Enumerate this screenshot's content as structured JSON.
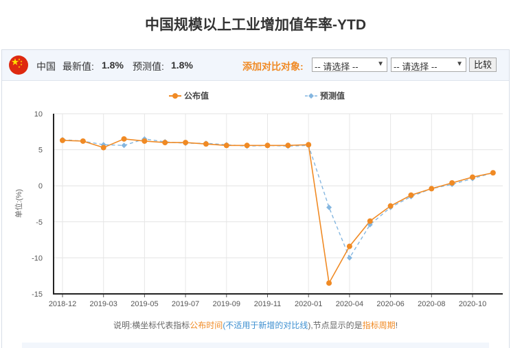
{
  "page": {
    "title": "中国规模以上工业增加值年率-YTD"
  },
  "toolbar": {
    "country": "中国",
    "latest_label": "最新值:",
    "latest_value": "1.8%",
    "forecast_label": "预测值:",
    "forecast_value": "1.8%",
    "compare_label": "添加对比对象:",
    "select1_value": "-- 请选择 --",
    "select2_value": "-- 请选择 --",
    "compare_button": "比较"
  },
  "note": {
    "p1": "说明:横坐标代表指标",
    "p2": "公布时间",
    "p3": "(",
    "p4": "不适用于新增的对比线",
    "p5": "),节点显示的是",
    "p6": "指标周期",
    "p7": "!"
  },
  "colors": {
    "published": "#f08a24",
    "forecast": "#84b6e0",
    "accent": "#f08a24"
  },
  "chart_data": {
    "type": "line",
    "ylabel": "单位:(%)",
    "ylim": [
      -15,
      10
    ],
    "yticks": [
      10,
      5,
      0,
      -5,
      -10,
      -15
    ],
    "x_tick_labels": [
      "2018-12",
      "2019-03",
      "2019-05",
      "2019-07",
      "2019-09",
      "2019-11",
      "2020-01",
      "2020-04",
      "2020-06",
      "2020-08",
      "2020-10"
    ],
    "x_tick_index": [
      0,
      2,
      4,
      6,
      8,
      10,
      12,
      14,
      16,
      18,
      20
    ],
    "legend_position": "top-center",
    "grid": true,
    "series": [
      {
        "name": "公布值",
        "color": "#f08a24",
        "values": [
          6.3,
          6.2,
          5.3,
          6.5,
          6.2,
          6.0,
          6.0,
          5.8,
          5.6,
          5.6,
          5.6,
          5.6,
          5.7,
          -13.5,
          -8.4,
          -4.9,
          -2.8,
          -1.3,
          -0.4,
          0.4,
          1.2,
          1.8
        ]
      },
      {
        "name": "预测值",
        "color": "#84b6e0",
        "values": [
          6.4,
          6.2,
          5.7,
          5.6,
          6.5,
          6.1,
          5.9,
          5.9,
          5.7,
          5.5,
          5.6,
          5.5,
          5.6,
          -3.0,
          -10.0,
          -5.4,
          -3.0,
          -1.5,
          -0.4,
          0.2,
          1.0,
          1.8
        ]
      }
    ]
  }
}
